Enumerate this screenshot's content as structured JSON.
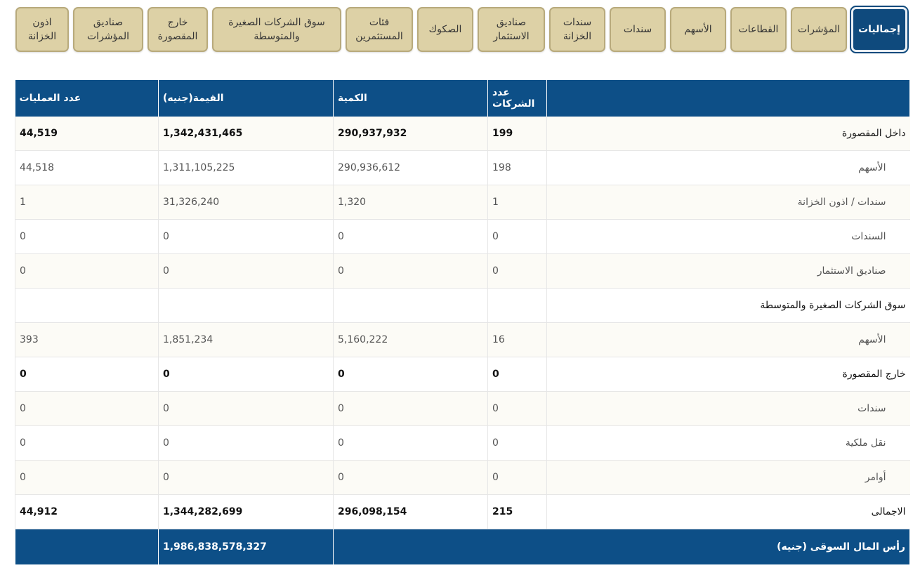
{
  "tabs": [
    {
      "label": "إجماليات",
      "active": true
    },
    {
      "label": "المؤشرات"
    },
    {
      "label": "القطاعات"
    },
    {
      "label": "الأسهم"
    },
    {
      "label": "سندات"
    },
    {
      "label": "سندات\nالخزانة"
    },
    {
      "label": "صناديق\nالاستثمار"
    },
    {
      "label": "الصكوك"
    },
    {
      "label": "فئات\nالمستثمرين"
    },
    {
      "label": "سوق الشركات الصغيرة\nوالمتوسطة"
    },
    {
      "label": "خارج\nالمقصورة"
    },
    {
      "label": "صناديق\nالمؤشرات"
    },
    {
      "label": "اذون\nالخزانة"
    }
  ],
  "table": {
    "headers": {
      "companies": "عدد الشركات",
      "quantity": "الكمية",
      "value": "القيمة(جنيه)",
      "trades": "عدد العمليات"
    },
    "rows": [
      {
        "name": "داخل المقصورة",
        "companies": "199",
        "quantity": "290,937,932",
        "value": "1,342,431,465",
        "trades": "44,519"
      },
      {
        "name": "الأسهم",
        "companies": "198",
        "quantity": "290,936,612",
        "value": "1,311,105,225",
        "trades": "44,518"
      },
      {
        "name": "سندات / اذون الخزانة",
        "companies": "1",
        "quantity": "1,320",
        "value": "31,326,240",
        "trades": "1"
      },
      {
        "name": "السندات",
        "companies": "0",
        "quantity": "0",
        "value": "0",
        "trades": "0"
      },
      {
        "name": "صناديق الاستثمار",
        "companies": "0",
        "quantity": "0",
        "value": "0",
        "trades": "0"
      },
      {
        "name": "سوق الشركات الصغيرة والمتوسطة",
        "companies": "",
        "quantity": "",
        "value": "",
        "trades": ""
      },
      {
        "name": "الأسهم",
        "companies": "16",
        "quantity": "5,160,222",
        "value": "1,851,234",
        "trades": "393"
      },
      {
        "name": "خارج المقصورة",
        "companies": "0",
        "quantity": "0",
        "value": "0",
        "trades": "0"
      },
      {
        "name": "سندات",
        "companies": "0",
        "quantity": "0",
        "value": "0",
        "trades": "0"
      },
      {
        "name": "نقل ملكية",
        "companies": "0",
        "quantity": "0",
        "value": "0",
        "trades": "0"
      },
      {
        "name": "أوامر",
        "companies": "0",
        "quantity": "0",
        "value": "0",
        "trades": "0"
      },
      {
        "name": "الاجمالى",
        "companies": "215",
        "quantity": "296,098,154",
        "value": "1,344,282,699",
        "trades": "44,912"
      }
    ],
    "market_cap_label": "رأس المال السوقى (جنيه)",
    "market_cap_value": "1,986,838,578,327"
  }
}
